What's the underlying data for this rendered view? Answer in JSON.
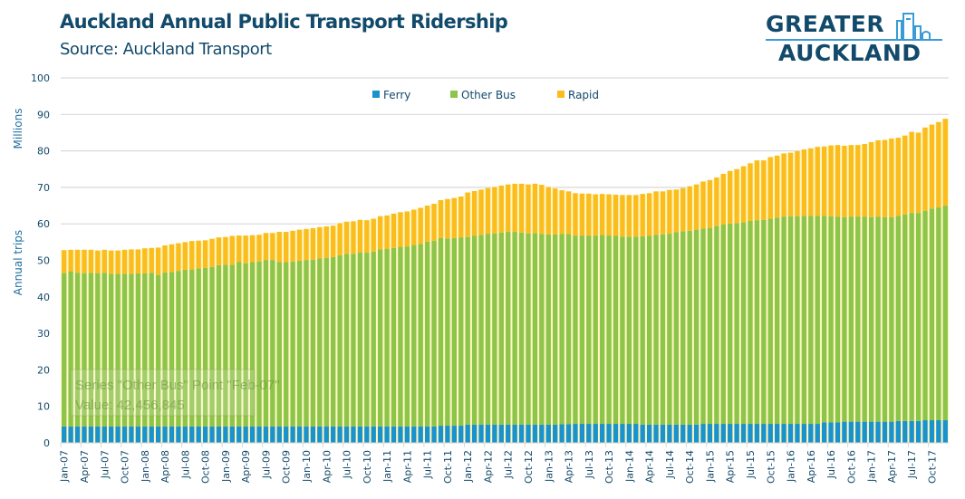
{
  "header": {
    "title": "Auckland Annual Public Transport Ridership",
    "subtitle": "Source: Auckland Transport"
  },
  "logo": {
    "line1": "GREATER",
    "line2": "AUCKLAND"
  },
  "tooltip": {
    "line1": "Series \"Other Bus\" Point \"Feb-07\"",
    "line2": "Value: 42,456,845"
  },
  "colors": {
    "ferry": "#1a92cc",
    "other_bus": "#8dc44a",
    "rapid": "#fbbd1e",
    "grid": "#d9d9d9",
    "text": "#124a6b"
  },
  "chart_data": {
    "type": "bar",
    "stacked": true,
    "title": "Auckland Annual Public Transport Ridership",
    "subtitle": "Source: Auckland Transport",
    "xlabel": "",
    "ylabel": "Annual trips",
    "yunit_label": "Millions",
    "ylim": [
      0,
      100
    ],
    "yticks": [
      0,
      10,
      20,
      30,
      40,
      50,
      60,
      70,
      80,
      90,
      100
    ],
    "grid": true,
    "legend_position": "top-center",
    "x_tick_labels": [
      "Jan-07",
      "Apr-07",
      "Jul-07",
      "Oct-07",
      "Jan-08",
      "Apr-08",
      "Jul-08",
      "Oct-08",
      "Jan-09",
      "Apr-09",
      "Jul-09",
      "Oct-09",
      "Jan-10",
      "Apr-10",
      "Jul-10",
      "Oct-10",
      "Jan-11",
      "Apr-11",
      "Jul-11",
      "Oct-11",
      "Jan-12",
      "Apr-12",
      "Jul-12",
      "Oct-12",
      "Jan-13",
      "Apr-13",
      "Jul-13",
      "Oct-13",
      "Jan-14",
      "Apr-14",
      "Jul-14",
      "Oct-14",
      "Jan-15",
      "Apr-15",
      "Jul-15",
      "Oct-15",
      "Jan-16",
      "Apr-16",
      "Jul-16",
      "Oct-16",
      "Jan-17",
      "Apr-17",
      "Jul-17",
      "Oct-17"
    ],
    "categories_start": "Jan-07",
    "categories_count": 132,
    "series": [
      {
        "name": "Ferry",
        "values": [
          4.5,
          4.5,
          4.5,
          4.5,
          4.5,
          4.5,
          4.5,
          4.5,
          4.5,
          4.5,
          4.5,
          4.5,
          4.5,
          4.5,
          4.5,
          4.5,
          4.5,
          4.5,
          4.5,
          4.5,
          4.5,
          4.5,
          4.5,
          4.5,
          4.5,
          4.5,
          4.5,
          4.5,
          4.5,
          4.5,
          4.5,
          4.5,
          4.5,
          4.5,
          4.5,
          4.5,
          4.5,
          4.5,
          4.5,
          4.5,
          4.5,
          4.5,
          4.5,
          4.5,
          4.5,
          4.5,
          4.5,
          4.5,
          4.5,
          4.5,
          4.5,
          4.5,
          4.5,
          4.5,
          4.5,
          4.5,
          4.7,
          4.7,
          4.7,
          4.7,
          5.0,
          5.0,
          5.0,
          5.0,
          5.0,
          5.0,
          5.0,
          5.0,
          5.0,
          5.0,
          5.0,
          5.0,
          5.0,
          5.0,
          5.1,
          5.1,
          5.2,
          5.2,
          5.2,
          5.2,
          5.2,
          5.2,
          5.2,
          5.2,
          5.2,
          5.2,
          5.0,
          5.0,
          5.0,
          5.0,
          5.0,
          5.0,
          5.0,
          5.0,
          5.0,
          5.2,
          5.2,
          5.2,
          5.2,
          5.2,
          5.2,
          5.2,
          5.2,
          5.2,
          5.2,
          5.2,
          5.2,
          5.2,
          5.2,
          5.2,
          5.2,
          5.2,
          5.2,
          5.6,
          5.6,
          5.6,
          5.8,
          5.8,
          5.8,
          5.8,
          5.8,
          5.8,
          5.8,
          5.8,
          6.0,
          6.0,
          6.0,
          6.0,
          6.2,
          6.2,
          6.2,
          6.2
        ]
      },
      {
        "name": "Other Bus",
        "values": [
          42.0,
          42.5,
          42.1,
          42.0,
          42.1,
          42.0,
          42.1,
          41.8,
          41.8,
          41.8,
          41.8,
          41.9,
          41.9,
          42.1,
          41.5,
          42.2,
          42.3,
          42.6,
          42.9,
          43.0,
          43.3,
          43.4,
          43.7,
          44.2,
          44.3,
          44.3,
          45.1,
          44.7,
          45.0,
          45.2,
          45.6,
          45.6,
          45.0,
          45.0,
          45.2,
          45.4,
          45.6,
          45.7,
          46.0,
          46.2,
          46.4,
          46.9,
          47.3,
          47.3,
          47.7,
          47.6,
          47.9,
          48.5,
          48.6,
          48.9,
          49.2,
          49.3,
          49.7,
          50.0,
          50.6,
          50.9,
          51.4,
          51.3,
          51.4,
          51.6,
          51.4,
          51.7,
          52.0,
          52.3,
          52.4,
          52.6,
          52.8,
          52.8,
          52.6,
          52.4,
          52.5,
          52.2,
          52.1,
          52.1,
          52.1,
          52.1,
          51.6,
          51.6,
          51.6,
          51.6,
          51.8,
          51.6,
          51.5,
          51.3,
          51.3,
          51.3,
          51.6,
          51.7,
          52.0,
          52.1,
          52.3,
          52.7,
          53.0,
          53.1,
          53.4,
          53.5,
          53.7,
          54.2,
          54.6,
          54.9,
          55.0,
          55.2,
          55.6,
          55.8,
          55.9,
          56.2,
          56.5,
          56.8,
          56.9,
          56.9,
          57.0,
          57.0,
          57.0,
          56.6,
          56.5,
          56.4,
          56.0,
          56.2,
          56.2,
          56.2,
          56.0,
          56.2,
          56.0,
          56.0,
          56.2,
          56.6,
          57.0,
          57.0,
          57.4,
          58.0,
          58.3,
          58.8
        ]
      },
      {
        "name": "Rapid",
        "values": [
          6.3,
          5.9,
          6.3,
          6.4,
          6.3,
          6.2,
          6.3,
          6.4,
          6.4,
          6.6,
          6.7,
          6.6,
          6.9,
          6.8,
          7.5,
          7.4,
          7.6,
          7.6,
          7.6,
          7.8,
          7.6,
          7.6,
          7.7,
          7.6,
          7.6,
          7.9,
          7.2,
          7.6,
          7.4,
          7.3,
          7.4,
          7.4,
          8.3,
          8.3,
          8.4,
          8.5,
          8.5,
          8.6,
          8.6,
          8.6,
          8.6,
          8.8,
          8.8,
          8.9,
          8.9,
          8.9,
          9.0,
          9.1,
          9.2,
          9.4,
          9.5,
          9.6,
          9.7,
          9.9,
          9.9,
          10.1,
          10.4,
          10.8,
          11.0,
          11.2,
          12.2,
          12.3,
          12.4,
          12.5,
          12.7,
          12.9,
          13.0,
          13.2,
          13.4,
          13.4,
          13.5,
          13.5,
          13.0,
          12.6,
          12.0,
          11.7,
          11.6,
          11.5,
          11.5,
          11.3,
          11.2,
          11.3,
          11.3,
          11.4,
          11.4,
          11.4,
          11.6,
          11.7,
          11.9,
          11.8,
          12.0,
          11.7,
          11.8,
          12.2,
          12.4,
          12.9,
          13.1,
          13.3,
          13.9,
          14.4,
          14.8,
          15.4,
          15.8,
          16.4,
          16.3,
          16.9,
          17.0,
          17.3,
          17.4,
          17.8,
          18.2,
          18.5,
          18.9,
          19.0,
          19.4,
          19.6,
          19.6,
          19.6,
          19.6,
          19.9,
          20.6,
          20.9,
          21.2,
          21.6,
          21.4,
          21.6,
          22.2,
          22.0,
          22.8,
          23.0,
          23.4,
          23.8
        ]
      }
    ]
  }
}
